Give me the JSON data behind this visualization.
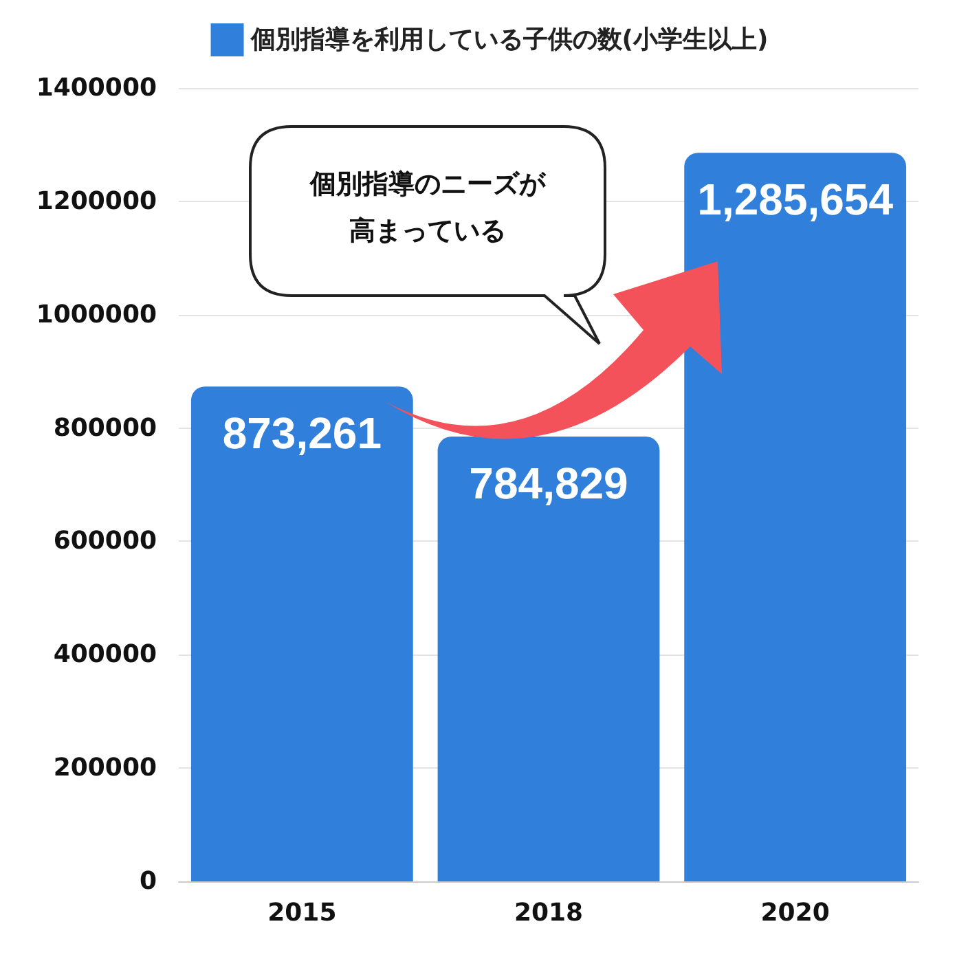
{
  "chart_data": {
    "type": "bar",
    "categories": [
      "2015",
      "2018",
      "2020"
    ],
    "series": [
      {
        "name": "個別指導を利用している子供の数(小学生以上)",
        "color": "#2f7fdb",
        "values": [
          873261,
          784829,
          1285654
        ],
        "value_labels": [
          "873,261",
          "784,829",
          "1,285,654"
        ]
      }
    ],
    "ylim": [
      0,
      1400000
    ],
    "yticks": [
      0,
      200000,
      400000,
      600000,
      800000,
      1000000,
      1200000,
      1400000
    ],
    "grid": "y",
    "legend": "top",
    "annotations": [
      "個別指導のニーズが",
      "高まっている"
    ]
  }
}
